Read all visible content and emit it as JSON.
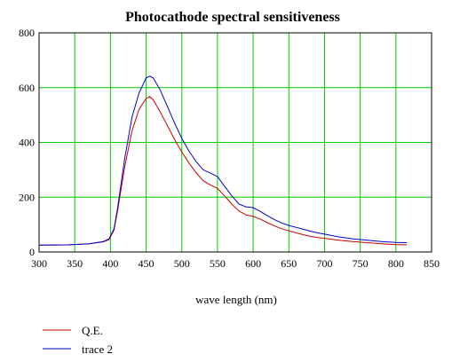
{
  "chart_data": {
    "type": "line",
    "title": "Photocathode spectral sensitiveness",
    "xlabel": "wave length (nm)",
    "ylabel": "",
    "xlim": [
      300,
      850
    ],
    "ylim": [
      0,
      800
    ],
    "x_ticks": [
      "300",
      "350",
      "400",
      "450",
      "500",
      "550",
      "600",
      "650",
      "700",
      "750",
      "800",
      "850"
    ],
    "y_ticks": [
      "0",
      "200",
      "400",
      "600",
      "800"
    ],
    "grid": true,
    "grid_color": "#00cc00",
    "legend_placement": "bottom-left",
    "series": [
      {
        "name": "Q.E.",
        "color": "#cc0000",
        "x": [
          300,
          340,
          370,
          390,
          398,
          405,
          410,
          420,
          430,
          440,
          450,
          455,
          460,
          470,
          480,
          490,
          500,
          510,
          520,
          530,
          540,
          550,
          560,
          570,
          580,
          590,
          600,
          610,
          620,
          630,
          640,
          650,
          660,
          670,
          680,
          690,
          700,
          720,
          740,
          760,
          780,
          800,
          815
        ],
        "y": [
          25,
          26,
          30,
          37,
          45,
          80,
          150,
          310,
          440,
          520,
          560,
          567,
          555,
          510,
          460,
          410,
          365,
          325,
          290,
          260,
          245,
          232,
          205,
          175,
          150,
          135,
          130,
          120,
          107,
          95,
          85,
          77,
          70,
          63,
          57,
          53,
          50,
          43,
          38,
          34,
          30,
          27,
          26
        ]
      },
      {
        "name": "trace 2",
        "color": "#0000cc",
        "x": [
          300,
          340,
          370,
          390,
          398,
          405,
          410,
          420,
          430,
          440,
          450,
          455,
          460,
          470,
          480,
          490,
          500,
          510,
          520,
          530,
          540,
          550,
          560,
          570,
          580,
          590,
          600,
          610,
          620,
          630,
          640,
          650,
          660,
          670,
          680,
          690,
          700,
          720,
          740,
          760,
          780,
          800,
          815
        ],
        "y": [
          25,
          26,
          30,
          38,
          48,
          85,
          160,
          340,
          490,
          580,
          635,
          642,
          635,
          590,
          530,
          470,
          415,
          368,
          330,
          300,
          288,
          275,
          240,
          205,
          175,
          165,
          162,
          148,
          132,
          118,
          106,
          97,
          90,
          83,
          76,
          70,
          65,
          55,
          48,
          43,
          38,
          35,
          34
        ]
      }
    ]
  }
}
